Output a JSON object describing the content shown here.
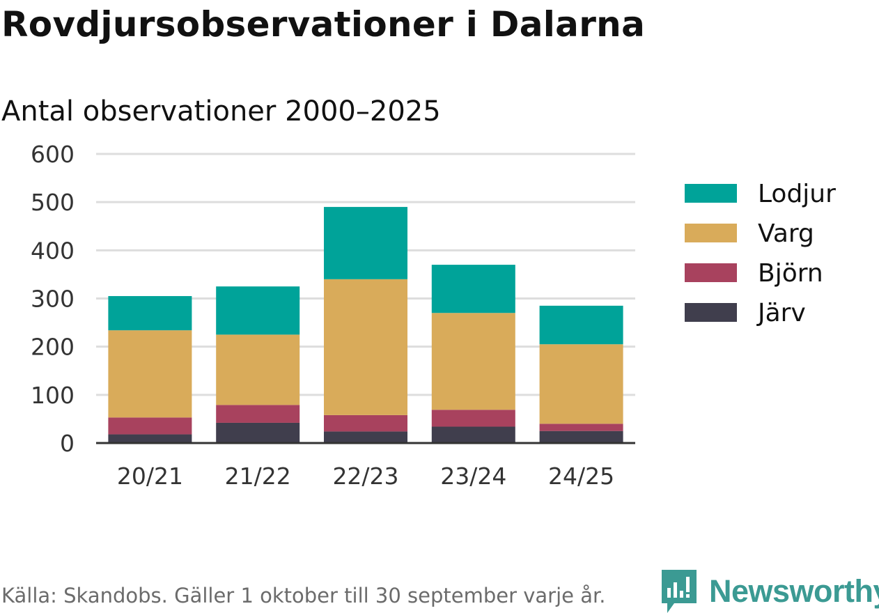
{
  "header": {
    "title": "Rovdjursobservationer i Dalarna",
    "subtitle": "Antal observationer 2000–2025"
  },
  "footer": {
    "source": "Källa: Skandobs. Gäller 1 oktober till 30 september varje år."
  },
  "brand": {
    "name": "Newsworthy",
    "color": "#3b9a93"
  },
  "chart_data": {
    "type": "bar",
    "stacked": true,
    "title": "Rovdjursobservationer i Dalarna",
    "subtitle": "Antal observationer 2000–2025",
    "categories": [
      "20/21",
      "21/22",
      "22/23",
      "23/24",
      "24/25"
    ],
    "series": [
      {
        "name": "Järv",
        "color": "#403e4d",
        "values": [
          18,
          42,
          24,
          34,
          25
        ]
      },
      {
        "name": "Björn",
        "color": "#a8425e",
        "values": [
          35,
          37,
          34,
          35,
          15
        ]
      },
      {
        "name": "Varg",
        "color": "#d9ab5a",
        "values": [
          181,
          146,
          282,
          201,
          165
        ]
      },
      {
        "name": "Lodjur",
        "color": "#00a399",
        "values": [
          71,
          100,
          150,
          100,
          80
        ]
      }
    ],
    "ylim": [
      0,
      600
    ],
    "yticks": [
      0,
      100,
      200,
      300,
      400,
      500,
      600
    ],
    "xlabel": "",
    "ylabel": "",
    "grid": true,
    "legend": "right",
    "legend_order": [
      "Lodjur",
      "Varg",
      "Björn",
      "Järv"
    ]
  }
}
